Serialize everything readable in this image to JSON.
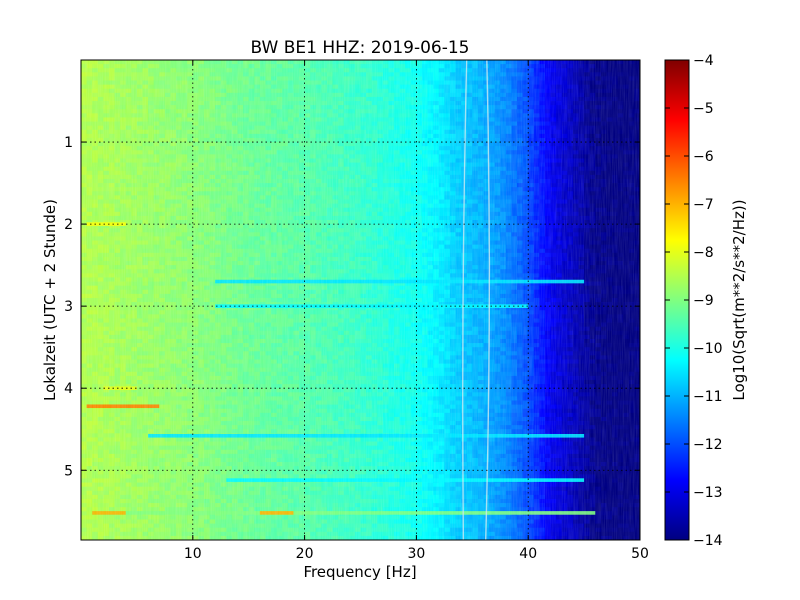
{
  "chart_data": {
    "type": "heatmap",
    "title": "BW BE1 HHZ: 2019-06-15",
    "xlabel": "Frequency [Hz]",
    "ylabel": "Lokalzeit (UTC + 2 Stunde)",
    "xlim": [
      0,
      50
    ],
    "ylim": [
      5.85,
      0
    ],
    "x_ticks": [
      10,
      20,
      30,
      40,
      50
    ],
    "y_ticks": [
      1,
      2,
      3,
      4,
      5
    ],
    "grid": true,
    "colormap": "jet",
    "colorbar": {
      "label": "Log10(Sqrt(m**2/s**2/Hz))",
      "range": [
        -14,
        -4
      ],
      "ticks": [
        -4,
        -5,
        -6,
        -7,
        -8,
        -9,
        -10,
        -11,
        -12,
        -13,
        -14
      ]
    },
    "frequency_profile": {
      "x": [
        0,
        5,
        10,
        15,
        20,
        25,
        30,
        32,
        34,
        36,
        38,
        40,
        42,
        44,
        46,
        48,
        50
      ],
      "values": [
        -8.5,
        -8.7,
        -8.9,
        -9.2,
        -9.4,
        -9.7,
        -10.1,
        -10.4,
        -10.8,
        -11.0,
        -11.4,
        -12.0,
        -12.9,
        -13.4,
        -13.9,
        -14.0,
        -14.0
      ]
    },
    "features": [
      {
        "label": "broadband line",
        "time": 2.7,
        "x_range": [
          12,
          45
        ],
        "value": -10.5
      },
      {
        "label": "broadband line",
        "time": 3.0,
        "x_range": [
          12,
          40
        ],
        "value": -10.3
      },
      {
        "label": "broadband line",
        "time": 4.58,
        "x_range": [
          6,
          45
        ],
        "value": -10.5
      },
      {
        "label": "broadband line",
        "time": 5.12,
        "x_range": [
          13,
          45
        ],
        "value": -10.3
      },
      {
        "label": "broadband line",
        "time": 5.52,
        "x_range": [
          1,
          46
        ],
        "value": -9.0
      },
      {
        "label": "low-frequency burst",
        "time": 4.22,
        "x_range": [
          0.5,
          7
        ],
        "value": -6.5
      },
      {
        "label": "low-frequency burst",
        "time": 5.52,
        "x_range": [
          1,
          4
        ],
        "value": -7.0
      },
      {
        "label": "low-frequency burst",
        "time": 5.52,
        "x_range": [
          16,
          19
        ],
        "value": -7.0
      },
      {
        "label": "low-frequency burst",
        "time": 2.0,
        "x_range": [
          0.5,
          4
        ],
        "value": -7.8
      },
      {
        "label": "low-frequency burst",
        "time": 4.0,
        "x_range": [
          2,
          5
        ],
        "value": -8.0
      }
    ],
    "tonal_lines": [
      {
        "x_at_top": 34.5,
        "x_at_middle": 34.0,
        "x_at_bottom": 34.2
      },
      {
        "x_at_top": 36.3,
        "x_at_middle": 36.8,
        "x_at_bottom": 36.2
      }
    ]
  }
}
